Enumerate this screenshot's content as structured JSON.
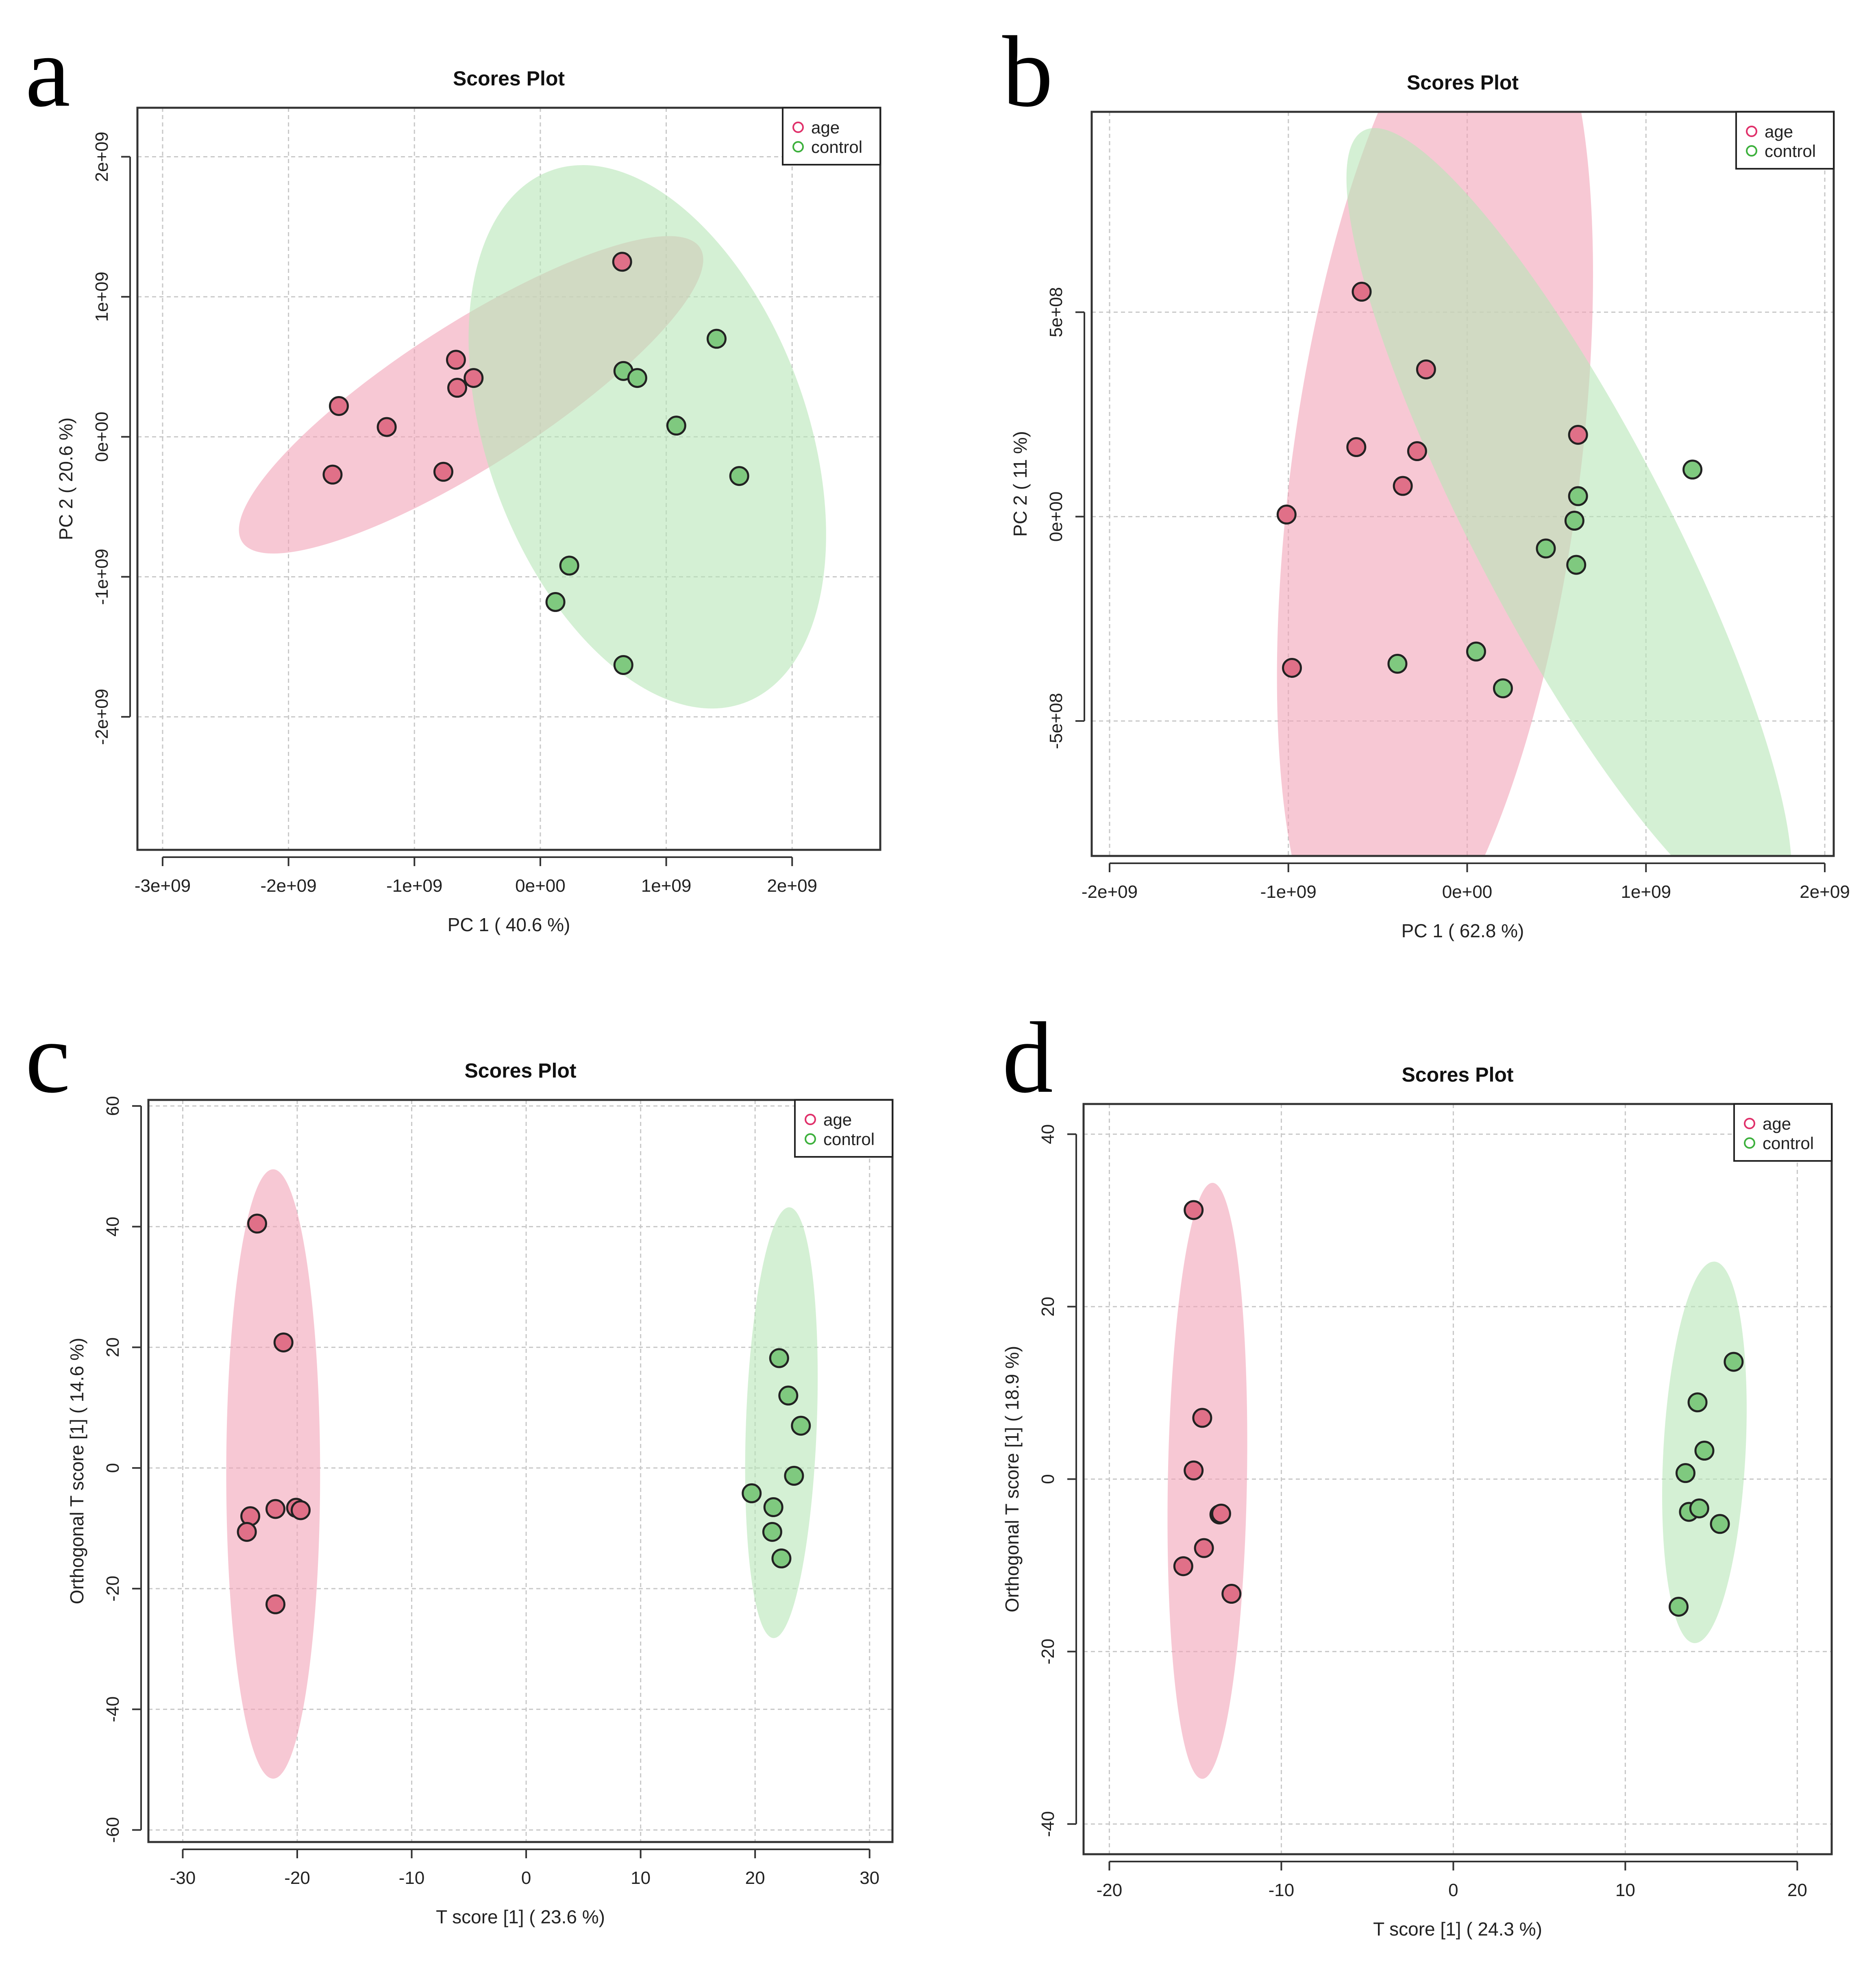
{
  "colors": {
    "age_fill": "#F2A3B8",
    "age_point": "#E07088",
    "control_fill": "#B8E6B8",
    "control_point": "#7FC97F",
    "age_legend": "#E0306A",
    "control_legend": "#3CB03C",
    "grid": "#c8c8c8",
    "axis": "#333333"
  },
  "chart_data": [
    {
      "panel": "a",
      "type": "scatter",
      "title": "Scores Plot",
      "xlabel": "PC 1 ( 40.6 %)",
      "ylabel": "PC 2 ( 20.6 %)",
      "xlim": [
        -3200000000.0,
        2700000000.0
      ],
      "ylim": [
        -2950000000.0,
        2350000000.0
      ],
      "xticks": [
        -3000000000.0,
        -2000000000.0,
        -1000000000.0,
        0,
        1000000000.0,
        2000000000.0
      ],
      "xtick_labels": [
        "-3e+09",
        "-2e+09",
        "-1e+09",
        "0e+00",
        "1e+09",
        "2e+09"
      ],
      "yticks": [
        -2000000000.0,
        -1000000000.0,
        0,
        1000000000.0,
        2000000000.0
      ],
      "ytick_labels": [
        "-2e+09",
        "-1e+09",
        "0e+00",
        "1e+09",
        "2e+09"
      ],
      "grid": true,
      "legend": {
        "position": "top-right",
        "entries": [
          "age",
          "control"
        ]
      },
      "series": [
        {
          "name": "age",
          "x": [
            -1600000000.0,
            -1650000000.0,
            -1220000000.0,
            -770000000.0,
            -670000000.0,
            -660000000.0,
            -530000000.0,
            650000000.0
          ],
          "y": [
            220000000.0,
            -270000000.0,
            70000000.0,
            -250000000.0,
            550000000.0,
            350000000.0,
            420000000.0,
            1250000000.0
          ]
        },
        {
          "name": "control",
          "x": [
            660000000.0,
            770000000.0,
            1080000000.0,
            1400000000.0,
            1580000000.0,
            230000000.0,
            120000000.0,
            660000000.0
          ],
          "y": [
            470000000.0,
            420000000.0,
            80000000.0,
            700000000.0,
            -280000000.0,
            -920000000.0,
            -1180000000.0,
            -1630000000.0
          ]
        }
      ],
      "ellipses": [
        {
          "name": "age",
          "cx": -550000000.0,
          "cy": 300000000.0,
          "rx": 2100000000.0,
          "ry": 520000000.0,
          "angle_deg": 30
        },
        {
          "name": "control",
          "cx": 850000000.0,
          "cy": 0.0,
          "rx": 2050000000.0,
          "ry": 1250000000.0,
          "angle_deg": -68
        }
      ]
    },
    {
      "panel": "b",
      "type": "scatter",
      "title": "Scores Plot",
      "xlabel": "PC 1 ( 62.8 %)",
      "ylabel": "PC 2 ( 11 %)",
      "xlim": [
        -2100000000.0,
        2050000000.0
      ],
      "ylim": [
        -830000000.0,
        990000000.0
      ],
      "xticks": [
        -2000000000.0,
        -1000000000.0,
        0,
        1000000000.0,
        2000000000.0
      ],
      "xtick_labels": [
        "-2e+09",
        "-1e+09",
        "0e+00",
        "1e+09",
        "2e+09"
      ],
      "yticks": [
        -500000000.0,
        0,
        500000000.0
      ],
      "ytick_labels": [
        "-5e+08",
        "0e+00",
        "5e+08"
      ],
      "grid": true,
      "legend": {
        "position": "top-right",
        "entries": [
          "age",
          "control"
        ]
      },
      "series": [
        {
          "name": "age",
          "x": [
            -590000000.0,
            -230000000.0,
            -620000000.0,
            -280000000.0,
            -360000000.0,
            -1010000000.0,
            -980000000.0,
            620000000.0
          ],
          "y": [
            550000000.0,
            360000000.0,
            170000000.0,
            160000000.0,
            75000000.0,
            5000000.0,
            -370000000.0,
            200000000.0
          ]
        },
        {
          "name": "control",
          "x": [
            1260000000.0,
            620000000.0,
            600000000.0,
            440000000.0,
            610000000.0,
            -390000000.0,
            50000000.0,
            200000000.0
          ],
          "y": [
            115000000.0,
            50000000.0,
            -10000000.0,
            -78000000.0,
            -118000000.0,
            -360000000.0,
            -330000000.0,
            -420000000.0
          ]
        }
      ],
      "ellipses": [
        {
          "name": "age",
          "cx": -180000000.0,
          "cy": 100000000.0,
          "rx": 1300000000.0,
          "ry": 690000000.0,
          "angle_deg": 73
        },
        {
          "name": "control",
          "cx": 570000000.0,
          "cy": -20000000.0,
          "rx": 1500000000.0,
          "ry": 290000000.0,
          "angle_deg": -40
        }
      ]
    },
    {
      "panel": "c",
      "type": "scatter",
      "title": "Scores Plot",
      "xlabel": "T score [1] ( 23.6 %)",
      "ylabel": "Orthogonal T score [1] ( 14.6 %)",
      "xlim": [
        -33,
        32
      ],
      "ylim": [
        -62,
        61
      ],
      "xticks": [
        -30,
        -20,
        -10,
        0,
        10,
        20,
        30
      ],
      "xtick_labels": [
        "-30",
        "-20",
        "-10",
        "0",
        "10",
        "20",
        "30"
      ],
      "yticks": [
        -60,
        -40,
        -20,
        0,
        20,
        40,
        60
      ],
      "ytick_labels": [
        "-60",
        "-40",
        "-20",
        "0",
        "20",
        "40",
        "60"
      ],
      "grid": true,
      "legend": {
        "position": "top-right",
        "entries": [
          "age",
          "control"
        ]
      },
      "series": [
        {
          "name": "age",
          "x": [
            -23.5,
            -21.2,
            -24.1,
            -24.4,
            -21.9,
            -20.1,
            -19.7,
            -21.9
          ],
          "y": [
            40.5,
            20.8,
            -8.0,
            -10.6,
            -6.8,
            -6.6,
            -7.0,
            -22.6
          ]
        },
        {
          "name": "control",
          "x": [
            22.1,
            22.9,
            24.0,
            23.4,
            19.7,
            21.6,
            21.5,
            22.3
          ],
          "y": [
            18.2,
            12.0,
            7.0,
            -1.3,
            -4.2,
            -6.5,
            -10.6,
            -15.0
          ]
        }
      ],
      "ellipses": [
        {
          "name": "age",
          "cx": -22.1,
          "cy": -1.0,
          "rx": 4.1,
          "ry": 50.5,
          "angle_deg": 0
        },
        {
          "name": "control",
          "cx": 22.3,
          "cy": 7.5,
          "rx": 3.1,
          "ry": 35.5,
          "angle_deg": -4
        }
      ]
    },
    {
      "panel": "d",
      "type": "scatter",
      "title": "Scores Plot",
      "xlabel": "T score [1] ( 24.3 %)",
      "ylabel": "Orthogonal T score [1] ( 18.9 %)",
      "xlim": [
        -21.5,
        22
      ],
      "ylim": [
        -43.5,
        43.5
      ],
      "xticks": [
        -20,
        -10,
        0,
        10,
        20
      ],
      "xtick_labels": [
        "-20",
        "-10",
        "0",
        "10",
        "20"
      ],
      "yticks": [
        -40,
        -20,
        0,
        20,
        40
      ],
      "ytick_labels": [
        "-40",
        "-20",
        "0",
        "20",
        "40"
      ],
      "grid": true,
      "legend": {
        "position": "top-right",
        "entries": [
          "age",
          "control"
        ]
      },
      "series": [
        {
          "name": "age",
          "x": [
            -15.1,
            -14.6,
            -15.1,
            -13.6,
            -13.5,
            -14.5,
            -15.7,
            -12.9
          ],
          "y": [
            31.2,
            7.1,
            1.0,
            -4.1,
            -4.0,
            -8.0,
            -10.1,
            -13.3
          ]
        },
        {
          "name": "control",
          "x": [
            16.3,
            14.2,
            14.6,
            13.5,
            13.7,
            14.3,
            15.5,
            13.1
          ],
          "y": [
            13.6,
            8.9,
            3.3,
            0.7,
            -3.8,
            -3.4,
            -5.2,
            -14.8
          ]
        }
      ],
      "ellipses": [
        {
          "name": "age",
          "cx": -14.3,
          "cy": -0.2,
          "rx": 2.3,
          "ry": 34.5,
          "angle_deg": -2
        },
        {
          "name": "control",
          "cx": 14.6,
          "cy": 3.1,
          "rx": 2.4,
          "ry": 21.8,
          "angle_deg": -6
        }
      ]
    }
  ]
}
